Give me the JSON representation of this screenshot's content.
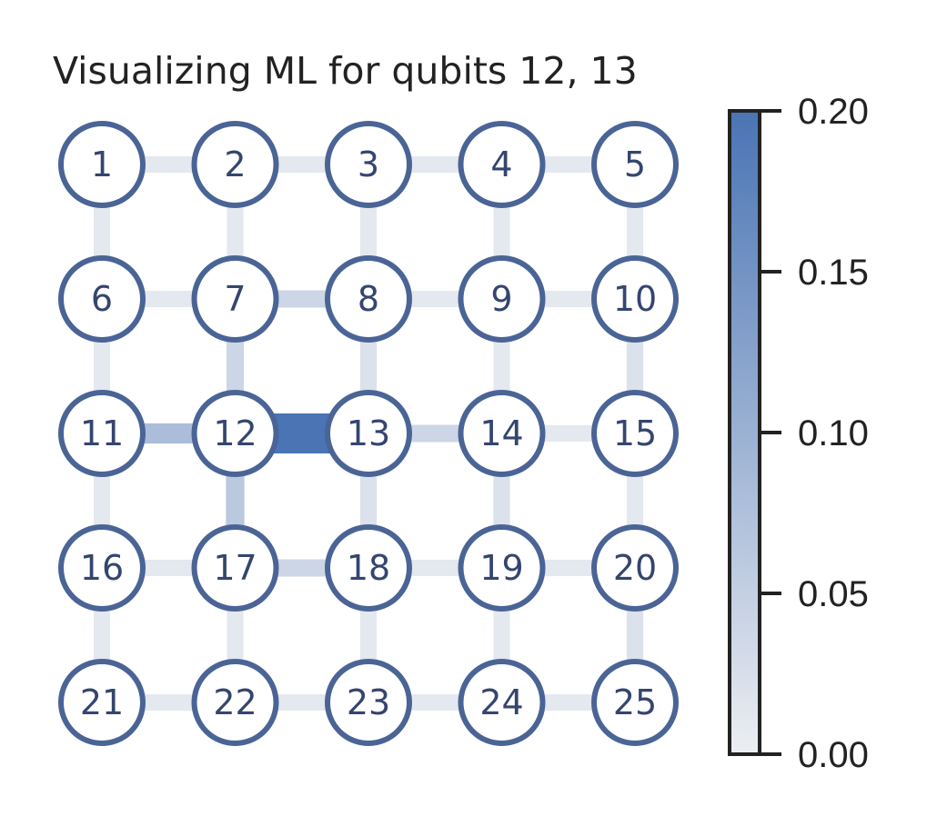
{
  "title": "Visualizing ML for qubits 12, 13",
  "colors": {
    "node_stroke": "#4a6496",
    "node_fill": "#ffffff",
    "node_text": "#34456f",
    "cmap_low": "#eceef2",
    "cmap_high": "#4a74b4",
    "axis": "#222222"
  },
  "grid": {
    "rows": 5,
    "cols": 5
  },
  "nodes": [
    "1",
    "2",
    "3",
    "4",
    "5",
    "6",
    "7",
    "8",
    "9",
    "10",
    "11",
    "12",
    "13",
    "14",
    "15",
    "16",
    "17",
    "18",
    "19",
    "20",
    "21",
    "22",
    "23",
    "24",
    "25"
  ],
  "edges": [
    {
      "a": 1,
      "b": 2,
      "v": 0.01
    },
    {
      "a": 2,
      "b": 3,
      "v": 0.01
    },
    {
      "a": 3,
      "b": 4,
      "v": 0.01
    },
    {
      "a": 4,
      "b": 5,
      "v": 0.01
    },
    {
      "a": 6,
      "b": 7,
      "v": 0.01
    },
    {
      "a": 7,
      "b": 8,
      "v": 0.04
    },
    {
      "a": 8,
      "b": 9,
      "v": 0.01
    },
    {
      "a": 9,
      "b": 10,
      "v": 0.01
    },
    {
      "a": 11,
      "b": 12,
      "v": 0.08
    },
    {
      "a": 12,
      "b": 13,
      "v": 0.2
    },
    {
      "a": 13,
      "b": 14,
      "v": 0.04
    },
    {
      "a": 14,
      "b": 15,
      "v": 0.01
    },
    {
      "a": 16,
      "b": 17,
      "v": 0.01
    },
    {
      "a": 17,
      "b": 18,
      "v": 0.04
    },
    {
      "a": 18,
      "b": 19,
      "v": 0.01
    },
    {
      "a": 19,
      "b": 20,
      "v": 0.01
    },
    {
      "a": 21,
      "b": 22,
      "v": 0.01
    },
    {
      "a": 22,
      "b": 23,
      "v": 0.01
    },
    {
      "a": 23,
      "b": 24,
      "v": 0.01
    },
    {
      "a": 24,
      "b": 25,
      "v": 0.01
    },
    {
      "a": 1,
      "b": 6,
      "v": 0.01
    },
    {
      "a": 2,
      "b": 7,
      "v": 0.01
    },
    {
      "a": 3,
      "b": 8,
      "v": 0.01
    },
    {
      "a": 4,
      "b": 9,
      "v": 0.01
    },
    {
      "a": 5,
      "b": 10,
      "v": 0.01
    },
    {
      "a": 6,
      "b": 11,
      "v": 0.01
    },
    {
      "a": 7,
      "b": 12,
      "v": 0.04
    },
    {
      "a": 8,
      "b": 13,
      "v": 0.02
    },
    {
      "a": 9,
      "b": 14,
      "v": 0.01
    },
    {
      "a": 10,
      "b": 15,
      "v": 0.02
    },
    {
      "a": 11,
      "b": 16,
      "v": 0.01
    },
    {
      "a": 12,
      "b": 17,
      "v": 0.06
    },
    {
      "a": 13,
      "b": 18,
      "v": 0.02
    },
    {
      "a": 14,
      "b": 19,
      "v": 0.02
    },
    {
      "a": 15,
      "b": 20,
      "v": 0.01
    },
    {
      "a": 16,
      "b": 21,
      "v": 0.01
    },
    {
      "a": 17,
      "b": 22,
      "v": 0.01
    },
    {
      "a": 18,
      "b": 23,
      "v": 0.01
    },
    {
      "a": 19,
      "b": 24,
      "v": 0.01
    },
    {
      "a": 20,
      "b": 25,
      "v": 0.02
    }
  ],
  "colorbar": {
    "min": 0.0,
    "max": 0.2,
    "ticks": [
      {
        "value": 0.0,
        "label": "0.00"
      },
      {
        "value": 0.05,
        "label": "0.05"
      },
      {
        "value": 0.1,
        "label": "0.10"
      },
      {
        "value": 0.15,
        "label": "0.15"
      },
      {
        "value": 0.2,
        "label": "0.20"
      }
    ]
  }
}
